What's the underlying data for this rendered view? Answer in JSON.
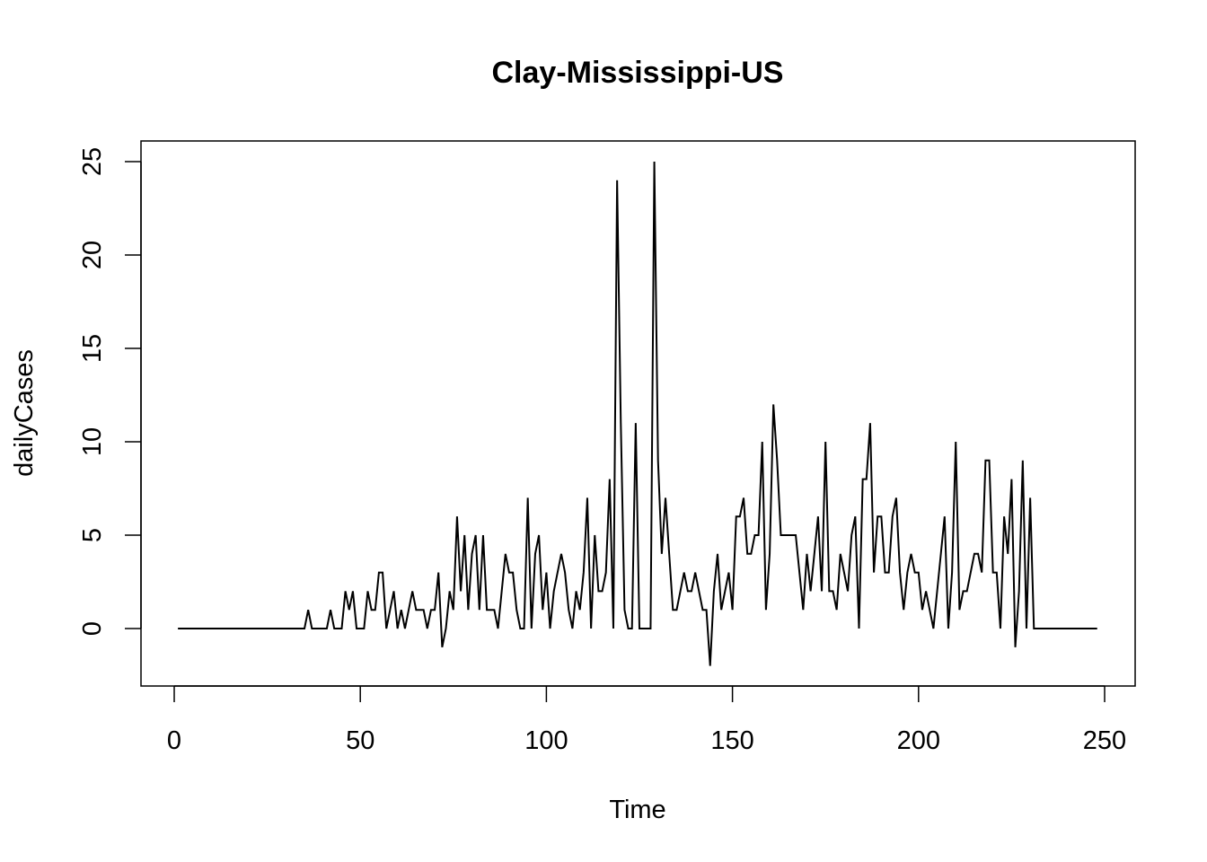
{
  "chart_data": {
    "type": "line",
    "title": "Clay-Mississippi-US",
    "xlabel": "Time",
    "ylabel": "dailyCases",
    "xlim": [
      1,
      248
    ],
    "ylim": [
      -2,
      25
    ],
    "xticks": [
      0,
      50,
      100,
      150,
      200,
      250
    ],
    "yticks": [
      0,
      5,
      10,
      15,
      20,
      25
    ],
    "grid": false,
    "x_start": 1,
    "series": [
      {
        "values": [
          0,
          0,
          0,
          0,
          0,
          0,
          0,
          0,
          0,
          0,
          0,
          0,
          0,
          0,
          0,
          0,
          0,
          0,
          0,
          0,
          0,
          0,
          0,
          0,
          0,
          0,
          0,
          0,
          0,
          0,
          0,
          0,
          0,
          0,
          0,
          1,
          0,
          0,
          0,
          0,
          0,
          1,
          0,
          0,
          0,
          2,
          1,
          2,
          0,
          0,
          0,
          2,
          1,
          1,
          3,
          3,
          0,
          1,
          2,
          0,
          1,
          0,
          1,
          2,
          1,
          1,
          1,
          0,
          1,
          1,
          3,
          -1,
          0,
          2,
          1,
          6,
          2,
          5,
          1,
          4,
          5,
          1,
          5,
          1,
          1,
          1,
          0,
          2,
          4,
          3,
          3,
          1,
          0,
          0,
          7,
          0,
          4,
          5,
          1,
          3,
          0,
          2,
          3,
          4,
          3,
          1,
          0,
          2,
          1,
          3,
          7,
          0,
          5,
          2,
          2,
          3,
          8,
          0,
          24,
          11,
          1,
          0,
          0,
          11,
          0,
          0,
          0,
          0,
          25,
          9,
          4,
          7,
          4,
          1,
          1,
          2,
          3,
          2,
          2,
          3,
          2,
          1,
          1,
          -2,
          2,
          4,
          1,
          2,
          3,
          1,
          6,
          6,
          7,
          4,
          4,
          5,
          5,
          10,
          1,
          4,
          12,
          9,
          5,
          5,
          5,
          5,
          5,
          3,
          1,
          4,
          2,
          4,
          6,
          2,
          10,
          2,
          2,
          1,
          4,
          3,
          2,
          5,
          6,
          0,
          8,
          8,
          11,
          3,
          6,
          6,
          3,
          3,
          6,
          7,
          3,
          1,
          3,
          4,
          3,
          3,
          1,
          2,
          1,
          0,
          2,
          4,
          6,
          0,
          3,
          10,
          1,
          2,
          2,
          3,
          4,
          4,
          3,
          9,
          9,
          3,
          3,
          0,
          6,
          4,
          8,
          -1,
          2,
          9,
          0,
          7,
          0,
          0,
          0,
          0,
          0,
          0,
          0,
          0,
          0,
          0,
          0,
          0,
          0,
          0,
          0,
          0,
          0,
          0
        ]
      }
    ]
  }
}
